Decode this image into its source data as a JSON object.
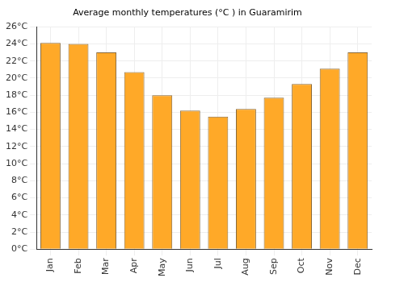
{
  "chart_data": {
    "type": "bar",
    "title": "Average monthly temperatures (°C ) in Guaramirim",
    "categories": [
      "Jan",
      "Feb",
      "Mar",
      "Apr",
      "May",
      "Jun",
      "Jul",
      "Aug",
      "Sep",
      "Oct",
      "Nov",
      "Dec"
    ],
    "values": [
      24.1,
      24.0,
      23.0,
      20.7,
      18.0,
      16.2,
      15.5,
      16.4,
      17.7,
      19.3,
      21.1,
      23.0
    ],
    "color": "#ffa928",
    "ylim": [
      0,
      26
    ],
    "yticks": [
      {
        "value": 0,
        "label": "0°C"
      },
      {
        "value": 2,
        "label": "2°C"
      },
      {
        "value": 4,
        "label": "4°C"
      },
      {
        "value": 6,
        "label": "6°C"
      },
      {
        "value": 8,
        "label": "8°C"
      },
      {
        "value": 10,
        "label": "10°C"
      },
      {
        "value": 12,
        "label": "12°C"
      },
      {
        "value": 14,
        "label": "14°C"
      },
      {
        "value": 16,
        "label": "16°C"
      },
      {
        "value": 18,
        "label": "18°C"
      },
      {
        "value": 20,
        "label": "20°C"
      },
      {
        "value": 22,
        "label": "22°C"
      },
      {
        "value": 24,
        "label": "24°C"
      },
      {
        "value": 26,
        "label": "26°C"
      }
    ],
    "grid": true
  }
}
